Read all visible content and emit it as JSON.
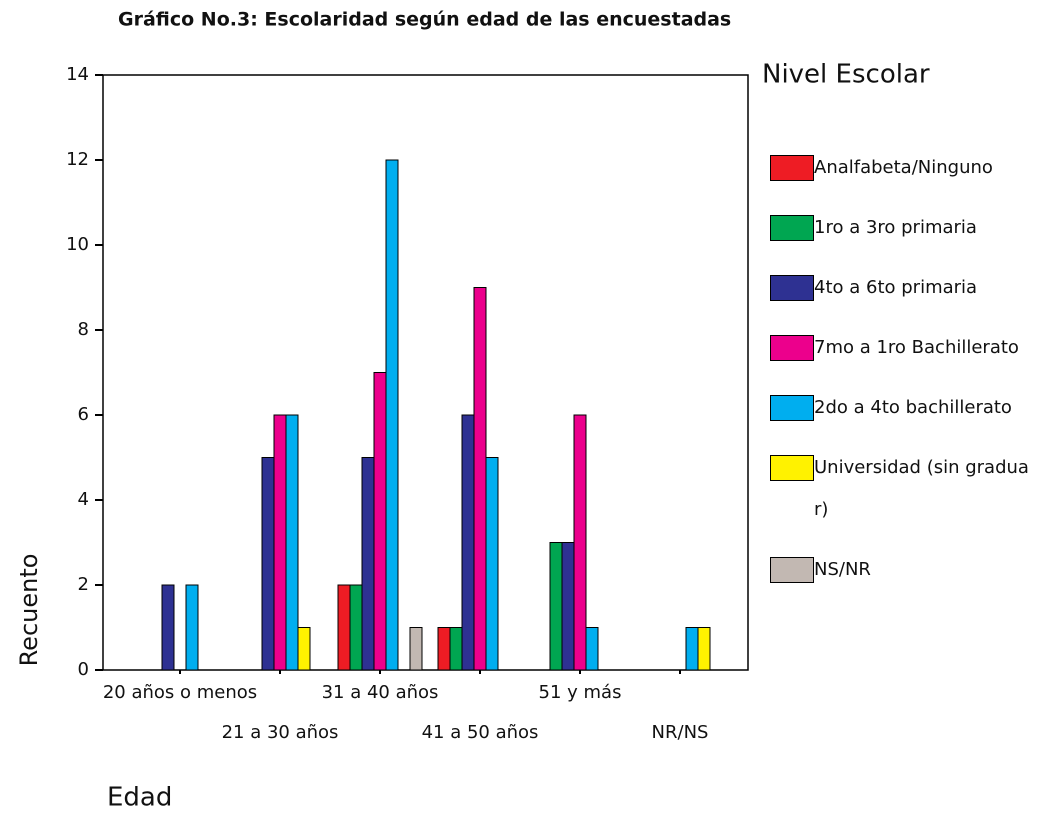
{
  "chart_data": {
    "type": "bar",
    "title": "Gráfico No.3: Escolaridad según edad de las encuestadas",
    "y_label": "Recuento",
    "x_label": "Edad",
    "legend_title": "Nivel Escolar",
    "categories": [
      "20 años o menos",
      "21 a 30 años",
      "31 a 40 años",
      "41 a 50 años",
      "51 y más",
      "NR/NS"
    ],
    "series": [
      {
        "name": "Analfabeta/Ninguno",
        "color": "#ee1c24",
        "values": [
          0,
          0,
          2,
          1,
          0,
          0
        ]
      },
      {
        "name": "1ro a 3ro primaria",
        "color": "#00a651",
        "values": [
          0,
          0,
          2,
          1,
          3,
          0
        ]
      },
      {
        "name": "4to a 6to primaria",
        "color": "#2e3192",
        "values": [
          2,
          5,
          5,
          6,
          3,
          0
        ]
      },
      {
        "name": "7mo a 1ro Bachillerato",
        "color": "#ec008c",
        "values": [
          0,
          6,
          7,
          9,
          6,
          0
        ]
      },
      {
        "name": "2do a 4to bachillerato",
        "color": "#00aeef",
        "values": [
          2,
          6,
          12,
          5,
          1,
          1
        ]
      },
      {
        "name": "Universidad (sin graduar)",
        "color": "#fff200",
        "values": [
          0,
          1,
          0,
          0,
          0,
          1
        ]
      },
      {
        "name": "NS/NR",
        "color": "#c2b8b2",
        "values": [
          0,
          0,
          1,
          0,
          0,
          0
        ]
      }
    ],
    "ylim": [
      0,
      14
    ],
    "yticks": [
      0,
      2,
      4,
      6,
      8,
      10,
      12,
      14
    ]
  }
}
